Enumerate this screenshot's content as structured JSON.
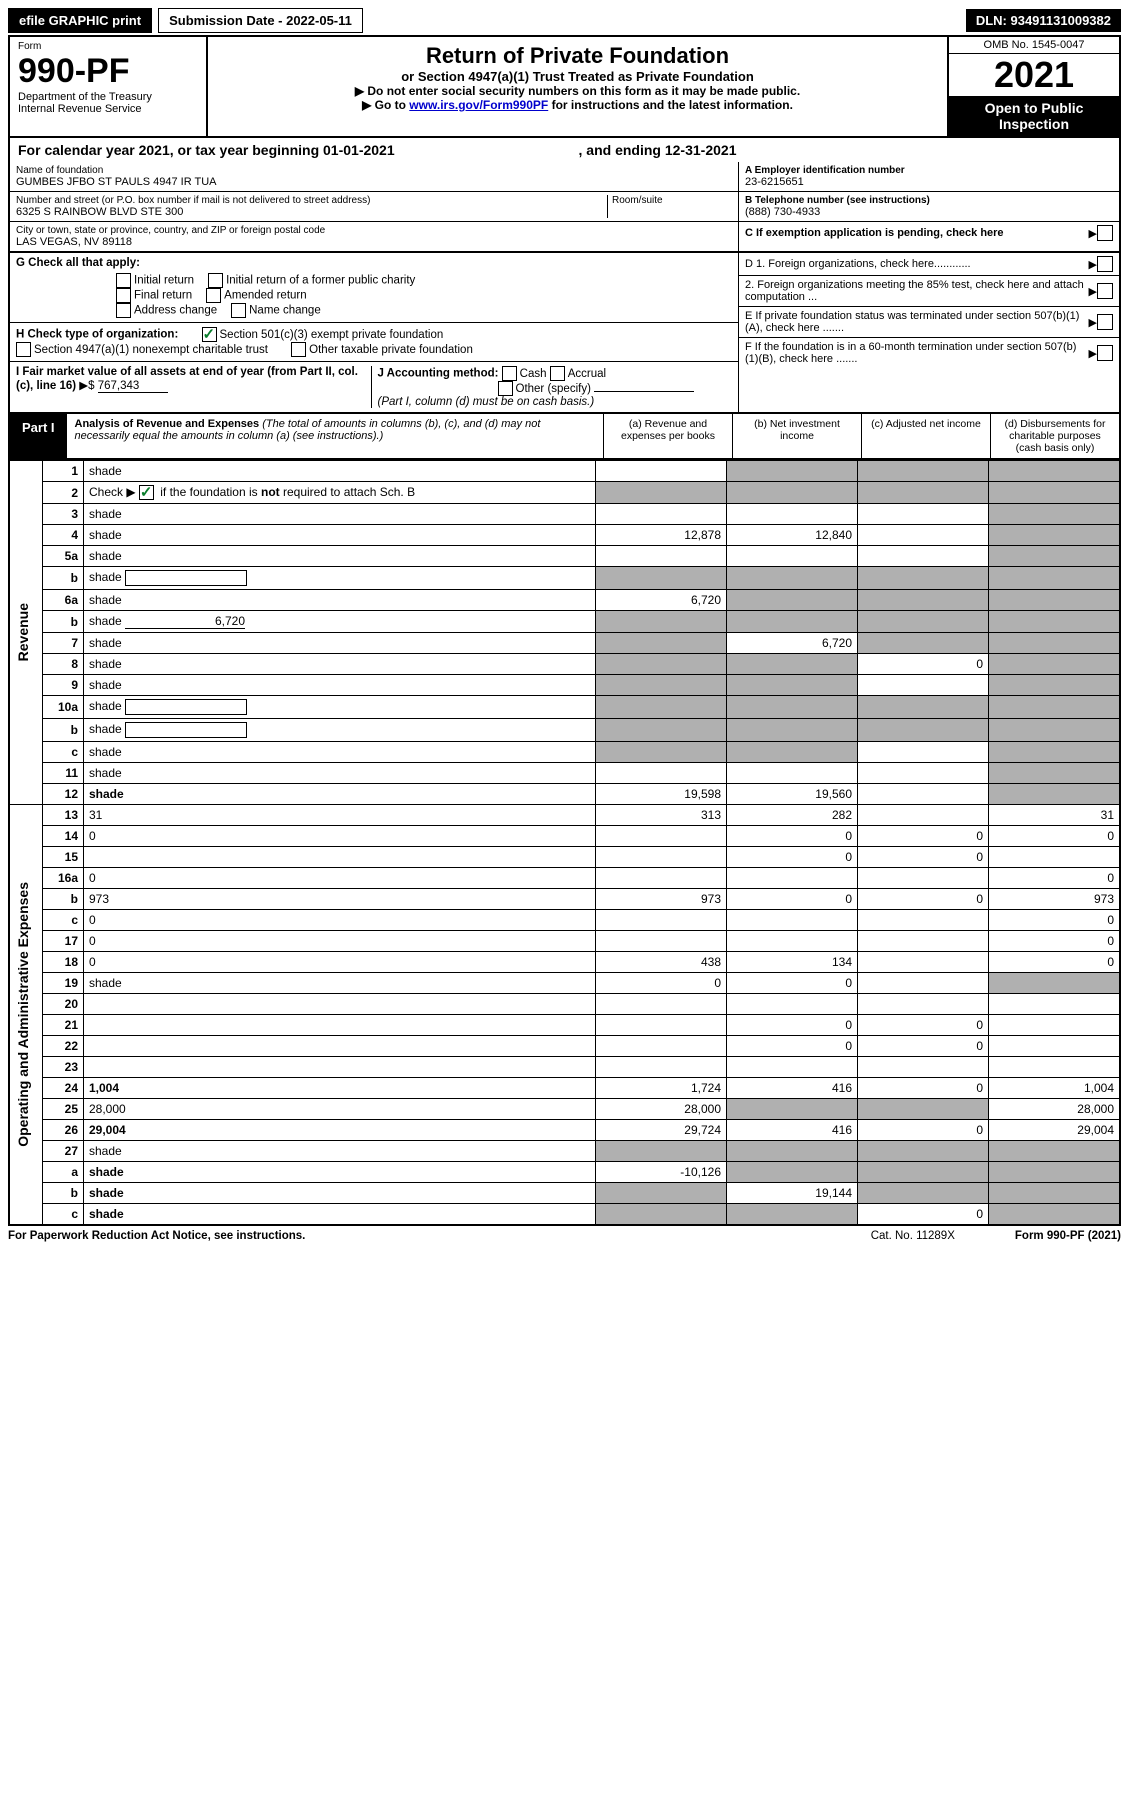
{
  "header": {
    "efile": "efile GRAPHIC print",
    "submission_label": "Submission Date - 2022-05-11",
    "dln": "DLN: 93491131009382",
    "form_word": "Form",
    "form_number": "990-PF",
    "dept": "Department of the Treasury",
    "irs": "Internal Revenue Service",
    "title": "Return of Private Foundation",
    "subtitle": "or Section 4947(a)(1) Trust Treated as Private Foundation",
    "instr1": "▶ Do not enter social security numbers on this form as it may be made public.",
    "instr2_pre": "▶ Go to ",
    "instr2_link": "www.irs.gov/Form990PF",
    "instr2_post": " for instructions and the latest information.",
    "omb": "OMB No. 1545-0047",
    "year": "2021",
    "open": "Open to Public Inspection"
  },
  "cal_year": "For calendar year 2021, or tax year beginning 01-01-2021",
  "cal_year_end": ", and ending 12-31-2021",
  "id_block": {
    "name_label": "Name of foundation",
    "name": "GUMBES JFBO ST PAULS 4947 IR TUA",
    "addr_label": "Number and street (or P.O. box number if mail is not delivered to street address)",
    "addr": "6325 S RAINBOW BLVD STE 300",
    "room_label": "Room/suite",
    "city_label": "City or town, state or province, country, and ZIP or foreign postal code",
    "city": "LAS VEGAS, NV  89118",
    "ein_label": "A Employer identification number",
    "ein": "23-6215651",
    "tel_label": "B Telephone number (see instructions)",
    "tel": "(888) 730-4933",
    "c_label": "C If exemption application is pending, check here",
    "d1": "D 1. Foreign organizations, check here............",
    "d2": "2. Foreign organizations meeting the 85% test, check here and attach computation ...",
    "e_label": "E  If private foundation status was terminated under section 507(b)(1)(A), check here .......",
    "f_label": "F  If the foundation is in a 60-month termination under section 507(b)(1)(B), check here ......."
  },
  "g_block": {
    "g_label": "G Check all that apply:",
    "opts": [
      "Initial return",
      "Initial return of a former public charity",
      "Final return",
      "Amended return",
      "Address change",
      "Name change"
    ],
    "h_label": "H Check type of organization:",
    "h1": "Section 501(c)(3) exempt private foundation",
    "h2": "Section 4947(a)(1) nonexempt charitable trust",
    "h3": "Other taxable private foundation",
    "i_label": "I Fair market value of all assets at end of year (from Part II, col. (c), line 16)",
    "i_val": "767,343",
    "j_label": "J Accounting method:",
    "j_cash": "Cash",
    "j_accrual": "Accrual",
    "j_other": "Other (specify)",
    "j_note": "(Part I, column (d) must be on cash basis.)"
  },
  "part1": {
    "tab": "Part I",
    "title": "Analysis of Revenue and Expenses",
    "note": " (The total of amounts in columns (b), (c), and (d) may not necessarily equal the amounts in column (a) (see instructions).)",
    "col_a": "(a)  Revenue and expenses per books",
    "col_b": "(b)  Net investment income",
    "col_c": "(c)  Adjusted net income",
    "col_d": "(d)  Disbursements for charitable purposes (cash basis only)"
  },
  "side_labels": {
    "rev": "Revenue",
    "ops": "Operating and Administrative Expenses"
  },
  "rows": [
    {
      "n": "1",
      "d": "shade",
      "a": "",
      "b": "shade",
      "c": "shade"
    },
    {
      "n": "2",
      "d": "shade",
      "a": "shade",
      "b": "shade",
      "c": "shade",
      "checked": true
    },
    {
      "n": "3",
      "d": "shade",
      "a": "",
      "b": "",
      "c": ""
    },
    {
      "n": "4",
      "d": "shade",
      "a": "12,878",
      "b": "12,840",
      "c": ""
    },
    {
      "n": "5a",
      "d": "shade",
      "a": "",
      "b": "",
      "c": ""
    },
    {
      "n": "b",
      "d": "shade",
      "a": "shade",
      "b": "shade",
      "c": "shade",
      "inline_box": true
    },
    {
      "n": "6a",
      "d": "shade",
      "a": "6,720",
      "b": "shade",
      "c": "shade"
    },
    {
      "n": "b",
      "d": "shade",
      "a": "shade",
      "b": "shade",
      "c": "shade",
      "inline_val": "6,720"
    },
    {
      "n": "7",
      "d": "shade",
      "a": "shade",
      "b": "6,720",
      "c": "shade"
    },
    {
      "n": "8",
      "d": "shade",
      "a": "shade",
      "b": "shade",
      "c": "0"
    },
    {
      "n": "9",
      "d": "shade",
      "a": "shade",
      "b": "shade",
      "c": ""
    },
    {
      "n": "10a",
      "d": "shade",
      "a": "shade",
      "b": "shade",
      "c": "shade",
      "inline_box": true
    },
    {
      "n": "b",
      "d": "shade",
      "a": "shade",
      "b": "shade",
      "c": "shade",
      "inline_box": true
    },
    {
      "n": "c",
      "d": "shade",
      "a": "shade",
      "b": "shade",
      "c": ""
    },
    {
      "n": "11",
      "d": "shade",
      "a": "",
      "b": "",
      "c": ""
    },
    {
      "n": "12",
      "d": "shade",
      "a": "19,598",
      "b": "19,560",
      "c": "",
      "bold": true
    }
  ],
  "exp_rows": [
    {
      "n": "13",
      "d": "31",
      "a": "313",
      "b": "282",
      "c": ""
    },
    {
      "n": "14",
      "d": "0",
      "a": "",
      "b": "0",
      "c": "0"
    },
    {
      "n": "15",
      "d": "",
      "a": "",
      "b": "0",
      "c": "0"
    },
    {
      "n": "16a",
      "d": "0",
      "a": "",
      "b": "",
      "c": ""
    },
    {
      "n": "b",
      "d": "973",
      "a": "973",
      "b": "0",
      "c": "0"
    },
    {
      "n": "c",
      "d": "0",
      "a": "",
      "b": "",
      "c": ""
    },
    {
      "n": "17",
      "d": "0",
      "a": "",
      "b": "",
      "c": ""
    },
    {
      "n": "18",
      "d": "0",
      "a": "438",
      "b": "134",
      "c": ""
    },
    {
      "n": "19",
      "d": "shade",
      "a": "0",
      "b": "0",
      "c": ""
    },
    {
      "n": "20",
      "d": "",
      "a": "",
      "b": "",
      "c": ""
    },
    {
      "n": "21",
      "d": "",
      "a": "",
      "b": "0",
      "c": "0"
    },
    {
      "n": "22",
      "d": "",
      "a": "",
      "b": "0",
      "c": "0"
    },
    {
      "n": "23",
      "d": "",
      "a": "",
      "b": "",
      "c": ""
    },
    {
      "n": "24",
      "d": "1,004",
      "a": "1,724",
      "b": "416",
      "c": "0",
      "bold": true
    },
    {
      "n": "25",
      "d": "28,000",
      "a": "28,000",
      "b": "shade",
      "c": "shade"
    },
    {
      "n": "26",
      "d": "29,004",
      "a": "29,724",
      "b": "416",
      "c": "0",
      "bold": true
    },
    {
      "n": "27",
      "d": "shade",
      "a": "shade",
      "b": "shade",
      "c": "shade"
    },
    {
      "n": "a",
      "d": "shade",
      "a": "-10,126",
      "b": "shade",
      "c": "shade",
      "bold": true
    },
    {
      "n": "b",
      "d": "shade",
      "a": "shade",
      "b": "19,144",
      "c": "shade",
      "bold": true
    },
    {
      "n": "c",
      "d": "shade",
      "a": "shade",
      "b": "shade",
      "c": "0",
      "bold": true
    }
  ],
  "footer": {
    "left": "For Paperwork Reduction Act Notice, see instructions.",
    "mid": "Cat. No. 11289X",
    "right": "Form 990-PF (2021)"
  },
  "colors": {
    "shade": "#b0b0b0",
    "link": "#0000cc",
    "check": "#0a7d2c"
  }
}
